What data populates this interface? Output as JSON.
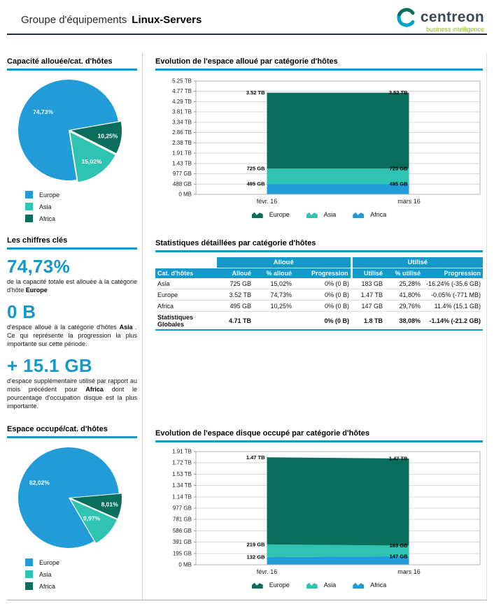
{
  "header": {
    "title_prefix": "Groupe d'équipements",
    "title_name": "Linux-Servers",
    "logo_brand": "centreon",
    "logo_tagline": "business intelligence"
  },
  "colors": {
    "blue": "#219CD8",
    "teal": "#2FC4B2",
    "dark_teal": "#0B6E5C",
    "accent": "#1698C8",
    "logo_green": "#8CB82E",
    "logo_dark": "#3C4858",
    "logo_teal": "#00A3C8"
  },
  "sections": {
    "alloc_pie_title": "Capacité allouée/cat. d'hôtes",
    "key_figures_title": "Les chiffres clés",
    "occupied_pie_title": "Espace occupé/cat. d'hôtes",
    "alloc_area_title": "Evolution de l'espace alloué par catégorie d'hôtes",
    "table_title": "Statistiques détaillées par catégorie d'hôtes",
    "occupied_area_title": "Evolution de l'espace disque occupé par catégorie d'hôtes"
  },
  "key_figures": [
    {
      "value": "74,73%",
      "pre": "de la capacité totale est allouée à la catégorie d'hôte ",
      "bold": "Europe",
      "post": ""
    },
    {
      "value": "0 B",
      "pre": "d'espace alloué à la catégorie d'hôtes ",
      "bold": "Asia",
      "post": " . Ce qui représente la progression la plus importante sur cette période."
    },
    {
      "value": "+ 15.1 GB",
      "pre": "d'espace supplémentaire utilisé par rapport au mois précédent pour ",
      "bold": "Africa",
      "post": " dont le pourcentage d'occupation disque est la plus importante."
    }
  ],
  "table": {
    "group_headers": [
      "Alloué",
      "Utilisé"
    ],
    "columns": [
      "Cat. d'hôtes",
      "Alloué",
      "% alloué",
      "Progression",
      "Utilisé",
      "% utilisé",
      "Progression"
    ],
    "rows": [
      [
        "Asia",
        "725 GB",
        "15,02%",
        "0% (0 B)",
        "183 GB",
        "25,28%",
        "-16.24% (-35.6 GB)"
      ],
      [
        "Europe",
        "3.52 TB",
        "74,73%",
        "0% (0 B)",
        "1.47 TB",
        "41,80%",
        "-0.05% (-771 MB)"
      ],
      [
        "Africa",
        "495 GB",
        "10,25%",
        "0% (0 B)",
        "147 GB",
        "29,76%",
        "11.4% (15.1 GB)"
      ],
      [
        "Statistiques Globales",
        "4.71 TB",
        "",
        "0% (0 B)",
        "1.8 TB",
        "38,08%",
        "-1.14% (-21.2 GB)"
      ]
    ]
  },
  "chart_data": [
    {
      "id": "alloc-pie",
      "type": "pie",
      "title": "Capacité allouée/cat. d'hôtes",
      "start_deg": 80,
      "slices": [
        {
          "name": "Africa",
          "pct": 10.25,
          "label": "10,25%",
          "color": "dark_teal",
          "explode": true,
          "label_r": 0.73
        },
        {
          "name": "Asia",
          "pct": 15.02,
          "label": "15,02%",
          "color": "teal",
          "explode": true,
          "label_r": 0.72
        },
        {
          "name": "Europe",
          "pct": 74.73,
          "label": "74,73%",
          "color": "blue",
          "explode": false,
          "label_r": 0.62
        }
      ],
      "legend": [
        {
          "label": "Europe",
          "color": "blue"
        },
        {
          "label": "Asia",
          "color": "teal"
        },
        {
          "label": "Africa",
          "color": "dark_teal"
        }
      ]
    },
    {
      "id": "occ-pie",
      "type": "pie",
      "title": "Espace occupé/cat. d'hôtes",
      "start_deg": 85,
      "slices": [
        {
          "name": "Africa",
          "pct": 8.01,
          "label": "8,01%",
          "color": "dark_teal",
          "explode": true,
          "label_r": 0.77
        },
        {
          "name": "Asia",
          "pct": 9.97,
          "label": "9,97%",
          "color": "teal",
          "explode": true,
          "label_r": 0.56
        },
        {
          "name": "Europe",
          "pct": 82.02,
          "label": "82,02%",
          "color": "blue",
          "explode": false,
          "label_r": 0.65
        }
      ],
      "legend": [
        {
          "label": "Europe",
          "color": "blue"
        },
        {
          "label": "Asia",
          "color": "teal"
        },
        {
          "label": "Africa",
          "color": "dark_teal"
        }
      ]
    },
    {
      "id": "alloc-area",
      "type": "area",
      "title": "Evolution de l'espace alloué par catégorie d'hôtes",
      "x": [
        "févr. 16",
        "mars 16"
      ],
      "y_ticks": [
        "5.25 TB",
        "4.77 TB",
        "4.29 TB",
        "3.81 TB",
        "3.34 TB",
        "2.86 TB",
        "2.38 TB",
        "1.91 TB",
        "1.43 TB",
        "977 GB",
        "488 GB",
        "0 MB"
      ],
      "ymax_gb": 5376,
      "series": [
        {
          "name": "Africa",
          "color": "blue",
          "values_gb": [
            495,
            495
          ],
          "labels": [
            "495 GB",
            "495 GB"
          ]
        },
        {
          "name": "Asia",
          "color": "teal",
          "values_gb": [
            725,
            725
          ],
          "labels": [
            "725 GB",
            "725 GB"
          ]
        },
        {
          "name": "Europe",
          "color": "dark_teal",
          "values_gb": [
            3604,
            3604
          ],
          "labels": [
            "3.52 TB",
            "3.52 TB"
          ]
        }
      ],
      "legend": [
        {
          "label": "Europe",
          "color": "dark_teal"
        },
        {
          "label": "Asia",
          "color": "teal"
        },
        {
          "label": "Africa",
          "color": "blue"
        }
      ]
    },
    {
      "id": "occ-area",
      "type": "area",
      "title": "Evolution de l'espace disque occupé par catégorie d'hôtes",
      "x": [
        "févr. 16",
        "mars 16"
      ],
      "y_ticks": [
        "1.91 TB",
        "1.72 TB",
        "1.53 TB",
        "1.34 TB",
        "1.14 TB",
        "977 GB",
        "781 GB",
        "586 GB",
        "391 GB",
        "195 GB",
        "0 MB"
      ],
      "ymax_gb": 1956,
      "series": [
        {
          "name": "Africa",
          "color": "blue",
          "values_gb": [
            132,
            147
          ],
          "labels": [
            "132 GB",
            "147 GB"
          ]
        },
        {
          "name": "Asia",
          "color": "teal",
          "values_gb": [
            219,
            183
          ],
          "labels": [
            "219 GB",
            "183 GB"
          ]
        },
        {
          "name": "Europe",
          "color": "dark_teal",
          "values_gb": [
            1505,
            1505
          ],
          "labels": [
            "1.47 TB",
            "1.47 TB"
          ]
        }
      ],
      "legend": [
        {
          "label": "Europe",
          "color": "dark_teal"
        },
        {
          "label": "Asia",
          "color": "teal"
        },
        {
          "label": "Africa",
          "color": "blue"
        }
      ]
    }
  ]
}
